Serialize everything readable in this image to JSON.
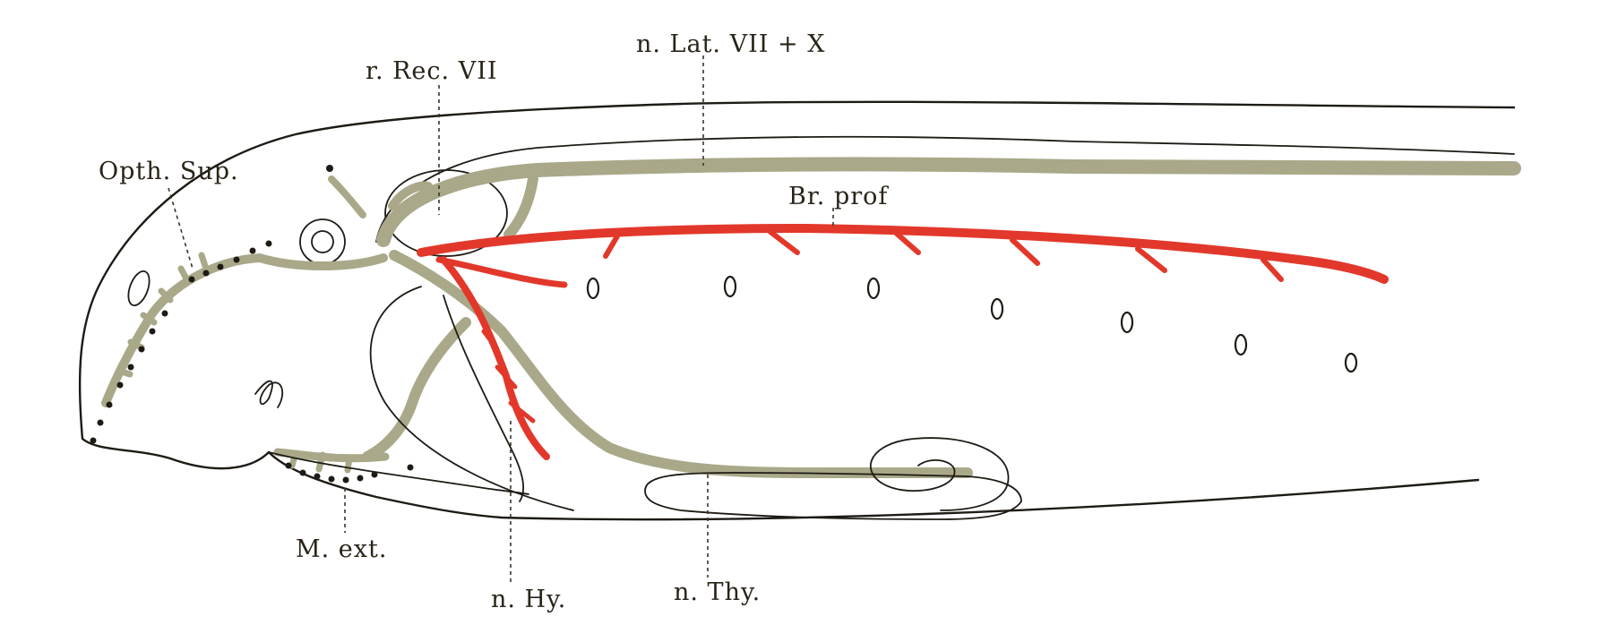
{
  "colors": {
    "background": "#ffffff",
    "outline": "#1e1a14",
    "lateral_nerve": "#a9a98a",
    "branchial_nerve": "#e2382b",
    "label_text": "#2a2418"
  },
  "labels": {
    "opth_sup": "Opth. Sup.",
    "n_rec_vii": "r. Rec. VII",
    "n_lat": "n. Lat. VII + X",
    "br_prof": "Br. prof",
    "m_ext": "M. ext.",
    "n_hy": "n. Hy.",
    "n_thy": "n. Thy."
  }
}
